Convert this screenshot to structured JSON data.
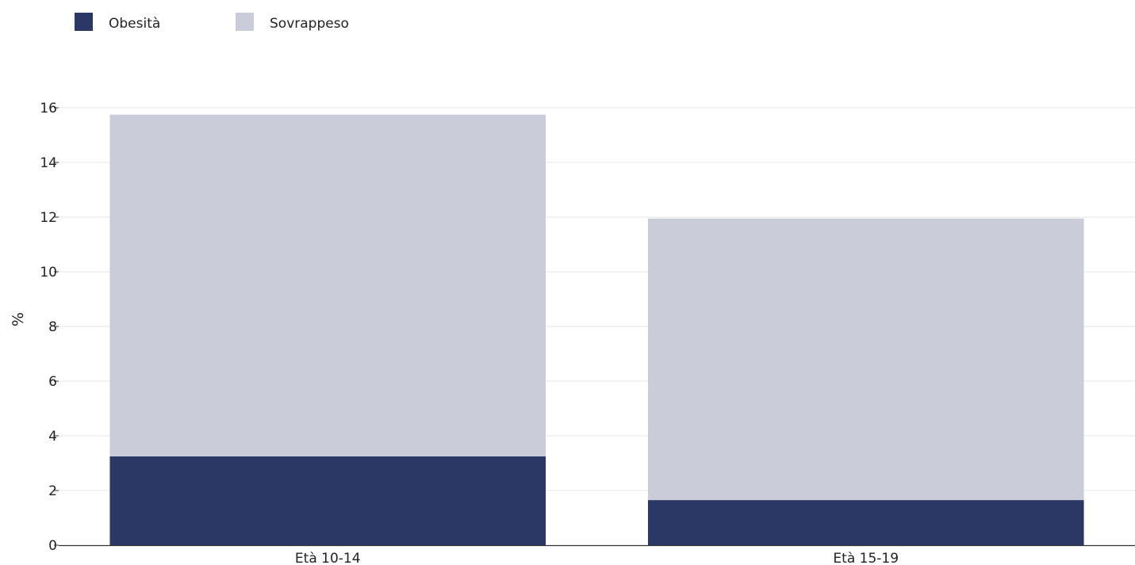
{
  "chart_data": {
    "type": "bar",
    "stacked": true,
    "categories": [
      "Età 10-14",
      "Età 15-19"
    ],
    "series": [
      {
        "name": "Obesità",
        "values": [
          3.25,
          1.65
        ],
        "color": "#2b3764"
      },
      {
        "name": "Sovrappeso",
        "values": [
          12.5,
          10.3
        ],
        "color": "#cacdd9"
      }
    ],
    "ylabel": "%",
    "ylim": [
      0,
      16
    ],
    "yticks": [
      0,
      2,
      4,
      6,
      8,
      10,
      12,
      14,
      16
    ],
    "grid": true,
    "legend_position": "top-left",
    "colors": {
      "grid": "#e6e6e6",
      "axis": "#333333"
    }
  }
}
